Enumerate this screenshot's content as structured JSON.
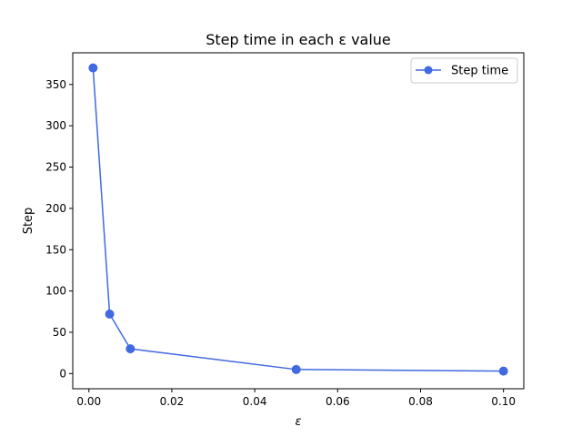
{
  "chart_data": {
    "type": "line",
    "title": "Step time in each ε value",
    "xlabel": "ε",
    "ylabel": "Step",
    "xlim": [
      -0.0039,
      0.1049
    ],
    "ylim": [
      -18.35,
      388.35
    ],
    "xticks": [
      0.0,
      0.02,
      0.04,
      0.06,
      0.08,
      0.1
    ],
    "xtick_labels": [
      "0.00",
      "0.02",
      "0.04",
      "0.06",
      "0.08",
      "0.10"
    ],
    "yticks": [
      0,
      50,
      100,
      150,
      200,
      250,
      300,
      350
    ],
    "ytick_labels": [
      "0",
      "50",
      "100",
      "150",
      "200",
      "250",
      "300",
      "350"
    ],
    "grid": false,
    "legend_position": "upper-right",
    "series": [
      {
        "name": "Step time",
        "color": "#4169e1",
        "marker": "circle",
        "x": [
          0.001,
          0.005,
          0.01,
          0.05,
          0.1
        ],
        "y": [
          370,
          72,
          30,
          5,
          3
        ]
      }
    ]
  }
}
